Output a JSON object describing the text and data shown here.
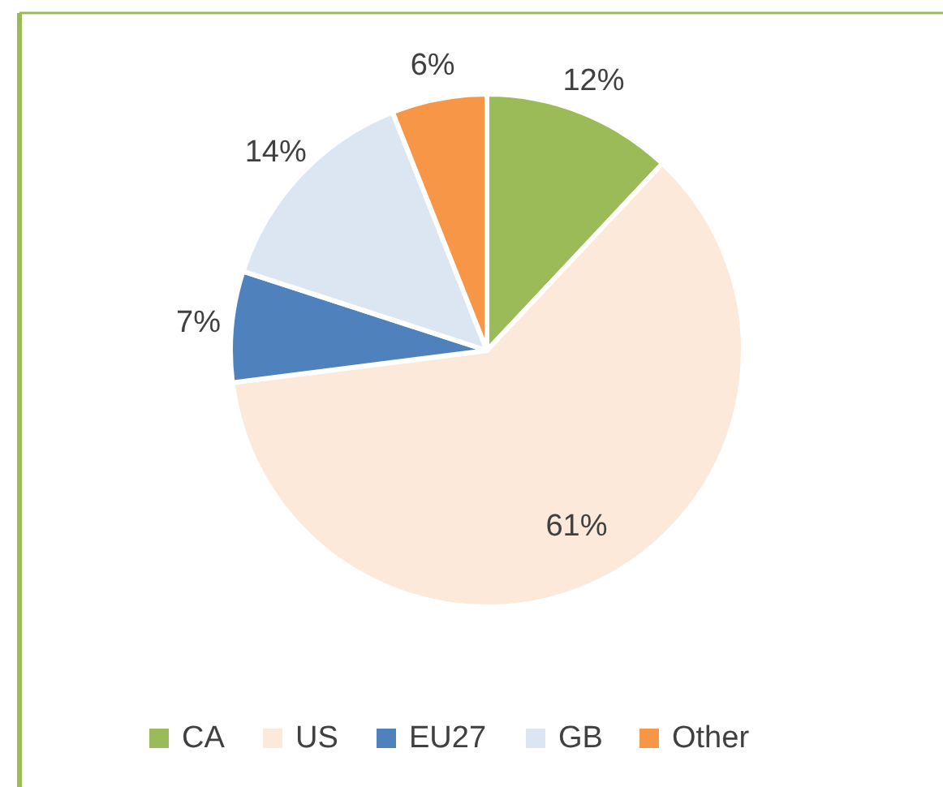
{
  "chart_data": {
    "type": "pie",
    "categories": [
      "CA",
      "US",
      "EU27",
      "GB",
      "Other"
    ],
    "values": [
      12,
      61,
      7,
      14,
      6
    ],
    "colors": [
      "#9bbb59",
      "#fde9d9",
      "#4f81bd",
      "#dce6f2",
      "#f79646"
    ],
    "value_labels": [
      "12%",
      "61%",
      "7%",
      "14%",
      "6%"
    ],
    "legend": "bottom"
  }
}
